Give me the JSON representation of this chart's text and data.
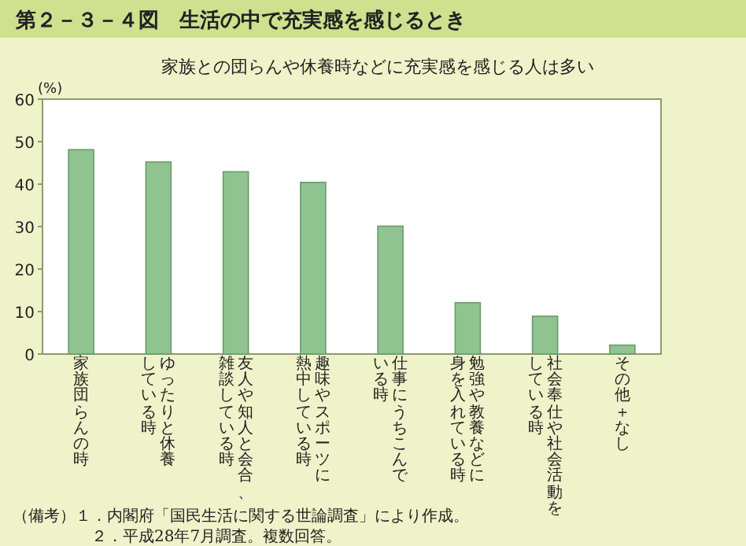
{
  "chart_data": {
    "type": "bar",
    "title": "第２－３－４図　生活の中で充実感を感じるとき",
    "subtitle": "家族との団らんや休養時などに充実感を感じる人は多い",
    "ylabel": "(%)",
    "categories": [
      "家族団らんの時",
      "ゆったりと休養している時",
      "友人や知人と会合、雑談している時",
      "趣味やスポーツに熱中している時",
      "仕事にうちこんでいる時",
      "勉強や教養などに身を入れている時",
      "社会奉仕や社会活動をしている時",
      "その他＋なし"
    ],
    "values": [
      48.1,
      45.2,
      42.9,
      40.4,
      30.1,
      12.1,
      8.9,
      2.1
    ],
    "color": "#8fc490",
    "ylim": [
      0,
      60
    ],
    "yticks": [
      0,
      10,
      20,
      30,
      40,
      50,
      60
    ],
    "annotations": [
      "（備考）１．内閣府「国民生活に関する世論調査」により作成。",
      "２．平成28年7月調査。複数回答。"
    ]
  }
}
